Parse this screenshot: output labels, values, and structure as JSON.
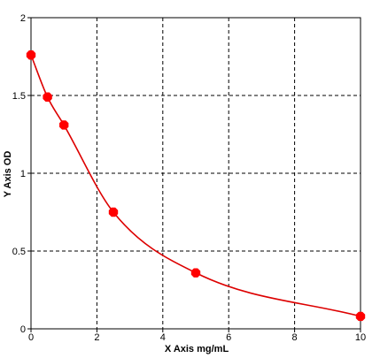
{
  "chart_data": {
    "type": "scatter",
    "xlabel": "X Axis mg/mL",
    "ylabel": "Y Axis OD",
    "xlim": [
      0,
      10
    ],
    "ylim": [
      0,
      2
    ],
    "x_ticks": [
      "0",
      "2",
      "4",
      "6",
      "8",
      "10"
    ],
    "y_ticks": [
      "0",
      "0.5",
      "1",
      "1.5",
      "2"
    ],
    "grid": true,
    "grid_style": "dashed",
    "series": [
      {
        "points": [
          {
            "x": 0,
            "y": 1.76
          },
          {
            "x": 0.5,
            "y": 1.49
          },
          {
            "x": 1,
            "y": 1.31
          },
          {
            "x": 2.5,
            "y": 0.75
          },
          {
            "x": 5,
            "y": 0.36
          },
          {
            "x": 10,
            "y": 0.08
          }
        ],
        "fit_line": true,
        "color": "#ff0000",
        "line_color": "#dd0000"
      }
    ]
  }
}
